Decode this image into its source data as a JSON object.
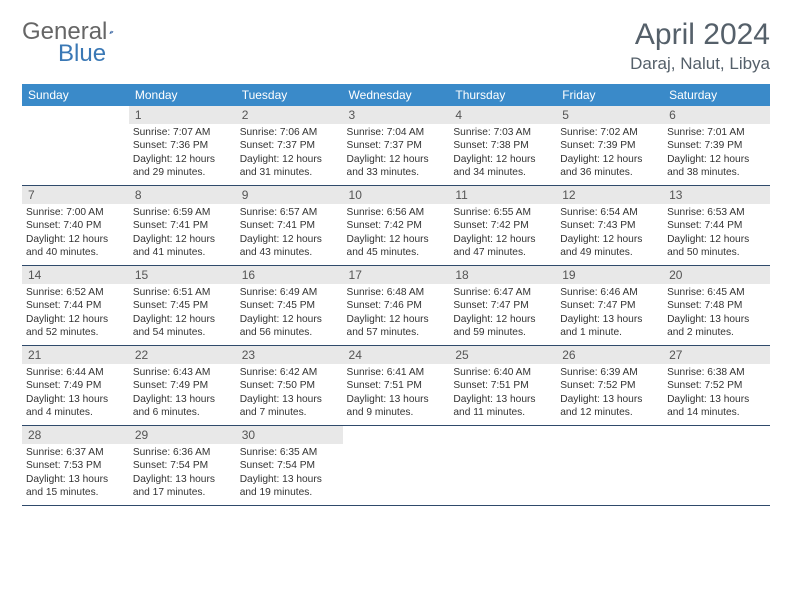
{
  "logo_text_a": "General",
  "logo_text_b": "Blue",
  "title": "April 2024",
  "location": "Daraj, Nalut, Libya",
  "columns": [
    "Sunday",
    "Monday",
    "Tuesday",
    "Wednesday",
    "Thursday",
    "Friday",
    "Saturday"
  ],
  "colors": {
    "header_bg": "#3a8ac9",
    "row_border": "#2f4a6b",
    "daynum_bg": "#e8e8e8",
    "title_color": "#55606a"
  },
  "font": {
    "family": "Arial",
    "day_fontsize": 10.2,
    "header_fontsize": 12,
    "title_fontsize": 30
  },
  "first_weekday_index": 1,
  "days": [
    {
      "n": 1,
      "sunrise": "7:07 AM",
      "sunset": "7:36 PM",
      "daylight": "12 hours and 29 minutes."
    },
    {
      "n": 2,
      "sunrise": "7:06 AM",
      "sunset": "7:37 PM",
      "daylight": "12 hours and 31 minutes."
    },
    {
      "n": 3,
      "sunrise": "7:04 AM",
      "sunset": "7:37 PM",
      "daylight": "12 hours and 33 minutes."
    },
    {
      "n": 4,
      "sunrise": "7:03 AM",
      "sunset": "7:38 PM",
      "daylight": "12 hours and 34 minutes."
    },
    {
      "n": 5,
      "sunrise": "7:02 AM",
      "sunset": "7:39 PM",
      "daylight": "12 hours and 36 minutes."
    },
    {
      "n": 6,
      "sunrise": "7:01 AM",
      "sunset": "7:39 PM",
      "daylight": "12 hours and 38 minutes."
    },
    {
      "n": 7,
      "sunrise": "7:00 AM",
      "sunset": "7:40 PM",
      "daylight": "12 hours and 40 minutes."
    },
    {
      "n": 8,
      "sunrise": "6:59 AM",
      "sunset": "7:41 PM",
      "daylight": "12 hours and 41 minutes."
    },
    {
      "n": 9,
      "sunrise": "6:57 AM",
      "sunset": "7:41 PM",
      "daylight": "12 hours and 43 minutes."
    },
    {
      "n": 10,
      "sunrise": "6:56 AM",
      "sunset": "7:42 PM",
      "daylight": "12 hours and 45 minutes."
    },
    {
      "n": 11,
      "sunrise": "6:55 AM",
      "sunset": "7:42 PM",
      "daylight": "12 hours and 47 minutes."
    },
    {
      "n": 12,
      "sunrise": "6:54 AM",
      "sunset": "7:43 PM",
      "daylight": "12 hours and 49 minutes."
    },
    {
      "n": 13,
      "sunrise": "6:53 AM",
      "sunset": "7:44 PM",
      "daylight": "12 hours and 50 minutes."
    },
    {
      "n": 14,
      "sunrise": "6:52 AM",
      "sunset": "7:44 PM",
      "daylight": "12 hours and 52 minutes."
    },
    {
      "n": 15,
      "sunrise": "6:51 AM",
      "sunset": "7:45 PM",
      "daylight": "12 hours and 54 minutes."
    },
    {
      "n": 16,
      "sunrise": "6:49 AM",
      "sunset": "7:45 PM",
      "daylight": "12 hours and 56 minutes."
    },
    {
      "n": 17,
      "sunrise": "6:48 AM",
      "sunset": "7:46 PM",
      "daylight": "12 hours and 57 minutes."
    },
    {
      "n": 18,
      "sunrise": "6:47 AM",
      "sunset": "7:47 PM",
      "daylight": "12 hours and 59 minutes."
    },
    {
      "n": 19,
      "sunrise": "6:46 AM",
      "sunset": "7:47 PM",
      "daylight": "13 hours and 1 minute."
    },
    {
      "n": 20,
      "sunrise": "6:45 AM",
      "sunset": "7:48 PM",
      "daylight": "13 hours and 2 minutes."
    },
    {
      "n": 21,
      "sunrise": "6:44 AM",
      "sunset": "7:49 PM",
      "daylight": "13 hours and 4 minutes."
    },
    {
      "n": 22,
      "sunrise": "6:43 AM",
      "sunset": "7:49 PM",
      "daylight": "13 hours and 6 minutes."
    },
    {
      "n": 23,
      "sunrise": "6:42 AM",
      "sunset": "7:50 PM",
      "daylight": "13 hours and 7 minutes."
    },
    {
      "n": 24,
      "sunrise": "6:41 AM",
      "sunset": "7:51 PM",
      "daylight": "13 hours and 9 minutes."
    },
    {
      "n": 25,
      "sunrise": "6:40 AM",
      "sunset": "7:51 PM",
      "daylight": "13 hours and 11 minutes."
    },
    {
      "n": 26,
      "sunrise": "6:39 AM",
      "sunset": "7:52 PM",
      "daylight": "13 hours and 12 minutes."
    },
    {
      "n": 27,
      "sunrise": "6:38 AM",
      "sunset": "7:52 PM",
      "daylight": "13 hours and 14 minutes."
    },
    {
      "n": 28,
      "sunrise": "6:37 AM",
      "sunset": "7:53 PM",
      "daylight": "13 hours and 15 minutes."
    },
    {
      "n": 29,
      "sunrise": "6:36 AM",
      "sunset": "7:54 PM",
      "daylight": "13 hours and 17 minutes."
    },
    {
      "n": 30,
      "sunrise": "6:35 AM",
      "sunset": "7:54 PM",
      "daylight": "13 hours and 19 minutes."
    }
  ],
  "labels": {
    "sunrise": "Sunrise: ",
    "sunset": "Sunset: ",
    "daylight": "Daylight: "
  }
}
